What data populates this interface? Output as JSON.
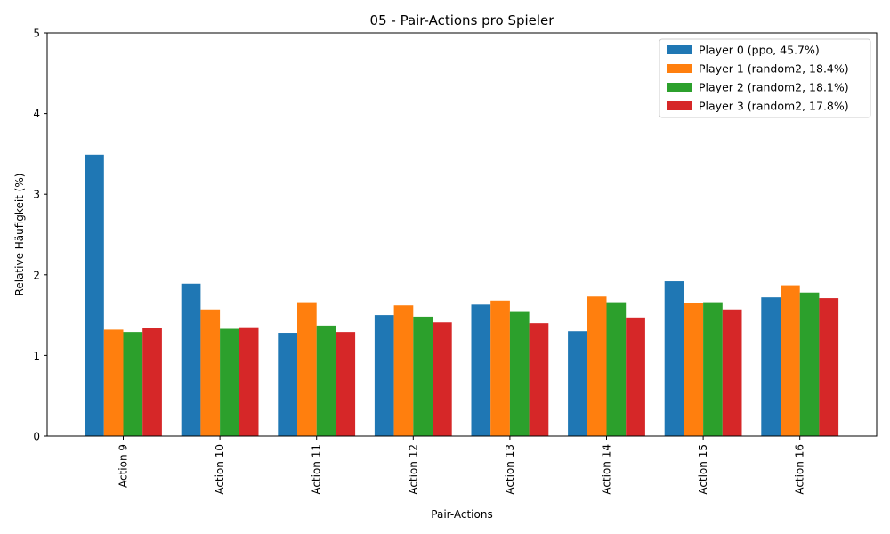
{
  "chart_data": {
    "type": "bar",
    "title": "05 - Pair-Actions pro Spieler",
    "xlabel": "Pair-Actions",
    "ylabel": "Relative Häufigkeit (%)",
    "ylim": [
      0,
      5
    ],
    "yticks": [
      "0",
      "1",
      "2",
      "3",
      "4",
      "5"
    ],
    "grid": false,
    "legend_position": "top-right",
    "categories": [
      "Action 9",
      "Action 10",
      "Action 11",
      "Action 12",
      "Action 13",
      "Action 14",
      "Action 15",
      "Action 16"
    ],
    "series": [
      {
        "name": "Player 0 (ppo, 45.7%)",
        "color": "#1f77b4",
        "values": [
          3.49,
          1.89,
          1.28,
          1.5,
          1.63,
          1.3,
          1.92,
          1.72
        ]
      },
      {
        "name": "Player 1 (random2, 18.4%)",
        "color": "#ff7f0e",
        "values": [
          1.32,
          1.57,
          1.66,
          1.62,
          1.68,
          1.73,
          1.65,
          1.87
        ]
      },
      {
        "name": "Player 2 (random2, 18.1%)",
        "color": "#2ca02c",
        "values": [
          1.29,
          1.33,
          1.37,
          1.48,
          1.55,
          1.66,
          1.66,
          1.78
        ]
      },
      {
        "name": "Player 3 (random2, 17.8%)",
        "color": "#d62728",
        "values": [
          1.34,
          1.35,
          1.29,
          1.41,
          1.4,
          1.47,
          1.57,
          1.71
        ]
      }
    ]
  }
}
